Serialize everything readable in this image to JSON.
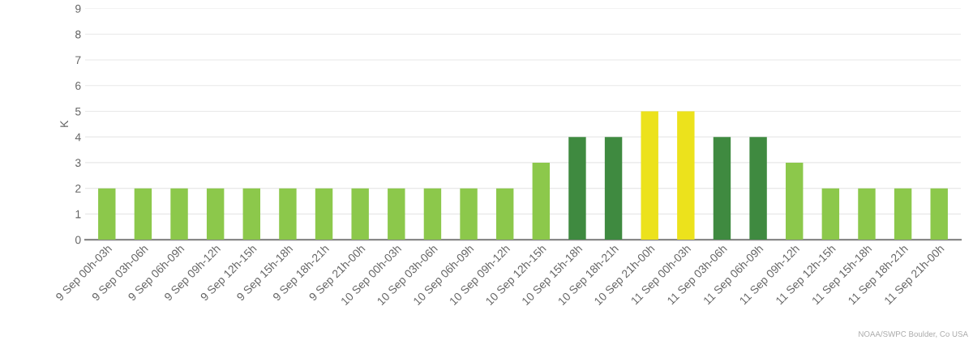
{
  "chart_data": {
    "type": "bar",
    "ylabel": "K",
    "categories": [
      "9 Sep 00h-03h",
      "9 Sep 03h-06h",
      "9 Sep 06h-09h",
      "9 Sep 09h-12h",
      "9 Sep 12h-15h",
      "9 Sep 15h-18h",
      "9 Sep 18h-21h",
      "9 Sep 21h-00h",
      "10 Sep 00h-03h",
      "10 Sep 03h-06h",
      "10 Sep 06h-09h",
      "10 Sep 09h-12h",
      "10 Sep 12h-15h",
      "10 Sep 15h-18h",
      "10 Sep 18h-21h",
      "10 Sep 21h-00h",
      "11 Sep 00h-03h",
      "11 Sep 03h-06h",
      "11 Sep 06h-09h",
      "11 Sep 09h-12h",
      "11 Sep 12h-15h",
      "11 Sep 15h-18h",
      "11 Sep 18h-21h",
      "11 Sep 21h-00h"
    ],
    "values": [
      2,
      2,
      2,
      2,
      2,
      2,
      2,
      2,
      2,
      2,
      2,
      2,
      3,
      4,
      4,
      5,
      5,
      4,
      4,
      3,
      2,
      2,
      2,
      2
    ],
    "colors": [
      "#8cc84b",
      "#8cc84b",
      "#8cc84b",
      "#8cc84b",
      "#8cc84b",
      "#8cc84b",
      "#8cc84b",
      "#8cc84b",
      "#8cc84b",
      "#8cc84b",
      "#8cc84b",
      "#8cc84b",
      "#8cc84b",
      "#3f8a40",
      "#3f8a40",
      "#ece21c",
      "#ece21c",
      "#3f8a40",
      "#3f8a40",
      "#8cc84b",
      "#8cc84b",
      "#8cc84b",
      "#8cc84b",
      "#8cc84b"
    ],
    "ylim": [
      0,
      9
    ],
    "yticks": [
      0,
      1,
      2,
      3,
      4,
      5,
      6,
      7,
      8,
      9
    ],
    "grid": "y",
    "annotations": [
      "NOAA/SWPC Boulder, Co USA"
    ]
  }
}
